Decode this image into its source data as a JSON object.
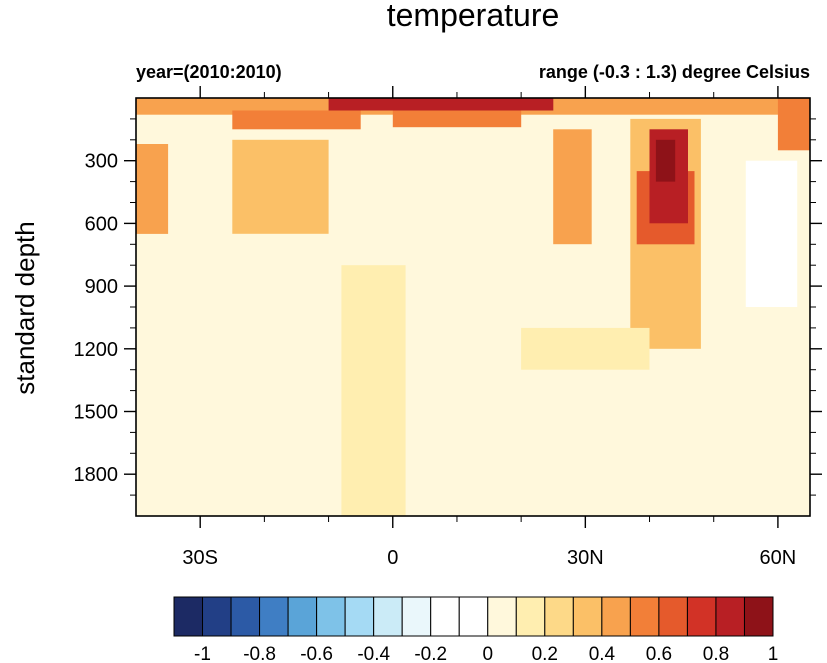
{
  "chart_data": {
    "type": "heatmap",
    "title": "temperature",
    "subtitle_left": "year=(2010:2010)",
    "subtitle_right": "range (-0.3 : 1.3) degree Celsius",
    "xlabel": "",
    "ylabel": "standard depth",
    "x_range_deg": [
      -40,
      65
    ],
    "y_range_depth": [
      0,
      2000
    ],
    "y_reversed": true,
    "x_ticks": [
      {
        "value": -30,
        "label": "30S"
      },
      {
        "value": 0,
        "label": "0"
      },
      {
        "value": 30,
        "label": "30N"
      },
      {
        "value": 60,
        "label": "60N"
      }
    ],
    "y_ticks": [
      {
        "value": 300,
        "label": "300"
      },
      {
        "value": 600,
        "label": "600"
      },
      {
        "value": 900,
        "label": "900"
      },
      {
        "value": 1200,
        "label": "1200"
      },
      {
        "value": 1500,
        "label": "1500"
      },
      {
        "value": 1800,
        "label": "1800"
      }
    ],
    "grid": false,
    "colorbar": {
      "levels": [
        -1,
        -0.9,
        -0.8,
        -0.7,
        -0.6,
        -0.5,
        -0.4,
        -0.3,
        -0.2,
        -0.1,
        0,
        0.1,
        0.2,
        0.3,
        0.4,
        0.5,
        0.6,
        0.7,
        0.8,
        0.9,
        1
      ],
      "labels": [
        "-1",
        "-0.8",
        "-0.6",
        "-0.4",
        "-0.2",
        "0",
        "0.2",
        "0.4",
        "0.6",
        "0.8",
        "1"
      ],
      "label_values": [
        -1,
        -0.8,
        -0.6,
        -0.4,
        -0.2,
        0,
        0.2,
        0.4,
        0.6,
        0.8,
        1
      ],
      "colors": [
        "#1c2a64",
        "#223f86",
        "#2c5aa6",
        "#3f7ec4",
        "#5aa4d8",
        "#7ec2e8",
        "#a5daf4",
        "#cbebf7",
        "#eaf7fb",
        "#ffffff",
        "#ffffff",
        "#fff8dc",
        "#ffeeb0",
        "#fdd988",
        "#fbc067",
        "#f8a24e",
        "#f27f38",
        "#e55a2c",
        "#d23226",
        "#b81f24",
        "#8e1218"
      ],
      "placement": "bottom"
    },
    "regions": [
      {
        "lat": [
          -40,
          65
        ],
        "depth": [
          0,
          2000
        ],
        "value": 0.05
      },
      {
        "lat": [
          -40,
          65
        ],
        "depth": [
          0,
          80
        ],
        "value": 0.4
      },
      {
        "lat": [
          -10,
          25
        ],
        "depth": [
          0,
          60
        ],
        "value": 0.85
      },
      {
        "lat": [
          0,
          20
        ],
        "depth": [
          60,
          140
        ],
        "value": 0.55
      },
      {
        "lat": [
          -25,
          -5
        ],
        "depth": [
          60,
          150
        ],
        "value": 0.5
      },
      {
        "lat": [
          -40,
          -35
        ],
        "depth": [
          220,
          650
        ],
        "value": 0.45
      },
      {
        "lat": [
          -25,
          -10
        ],
        "depth": [
          200,
          650
        ],
        "value": 0.3
      },
      {
        "lat": [
          25,
          31
        ],
        "depth": [
          150,
          700
        ],
        "value": 0.4
      },
      {
        "lat": [
          37,
          48
        ],
        "depth": [
          100,
          1200
        ],
        "value": 0.3
      },
      {
        "lat": [
          38,
          47
        ],
        "depth": [
          350,
          700
        ],
        "value": 0.65
      },
      {
        "lat": [
          40,
          46
        ],
        "depth": [
          150,
          600
        ],
        "value": 0.85
      },
      {
        "lat": [
          41,
          44
        ],
        "depth": [
          200,
          400
        ],
        "value": 0.95
      },
      {
        "lat": [
          55,
          63
        ],
        "depth": [
          300,
          1000
        ],
        "value": -0.1
      },
      {
        "lat": [
          -8,
          2
        ],
        "depth": [
          800,
          2000
        ],
        "value": 0.12
      },
      {
        "lat": [
          20,
          40
        ],
        "depth": [
          1100,
          1300
        ],
        "value": 0.12
      },
      {
        "lat": [
          60,
          65
        ],
        "depth": [
          0,
          250
        ],
        "value": 0.55
      }
    ]
  }
}
